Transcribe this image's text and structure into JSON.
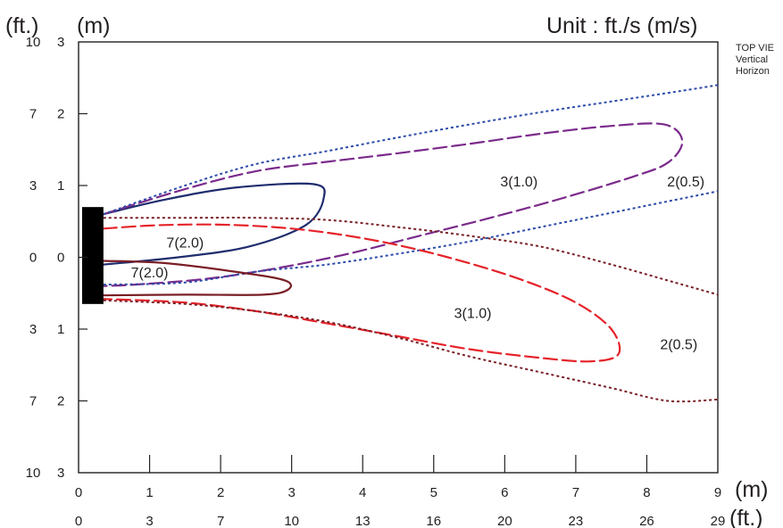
{
  "chart_data": {
    "type": "line",
    "unit_label": "Unit : ft./s (m/s)",
    "x_axis": {
      "label_m": "(m)",
      "label_ft": "(ft.)",
      "ticks_m": [
        "0",
        "1",
        "2",
        "3",
        "4",
        "5",
        "6",
        "7",
        "8",
        "9"
      ],
      "ticks_ft": [
        "0",
        "3",
        "7",
        "10",
        "13",
        "16",
        "20",
        "23",
        "26",
        "29"
      ],
      "xlim": [
        0,
        9
      ]
    },
    "y_axis": {
      "label_ft": "(ft.)",
      "label_m": "(m)",
      "ticks_m": [
        "3",
        "2",
        "1",
        "0",
        "1",
        "2",
        "3"
      ],
      "ticks_ft": [
        "10",
        "7",
        "3",
        "0",
        "3",
        "7",
        "10"
      ],
      "ylim": [
        -3,
        3
      ]
    },
    "legend_text": [
      "TOP VIE",
      "Vertical",
      "Horizon"
    ],
    "sensor": {
      "x0": 0.05,
      "x1": 0.35,
      "y0": -0.65,
      "y1": 0.7
    },
    "series": [
      {
        "plot": "upper",
        "speed": "7(2.0)",
        "color": "#1f2d6e",
        "style": "solid",
        "label": {
          "text": "7(2.0)",
          "x": 1.5,
          "y": 0.2
        },
        "points": [
          [
            0.35,
            0.6
          ],
          [
            1.2,
            0.8
          ],
          [
            2.2,
            0.97
          ],
          [
            3.3,
            1.02
          ],
          [
            3.45,
            0.82
          ],
          [
            3.2,
            0.45
          ],
          [
            2.4,
            0.15
          ],
          [
            1.4,
            0.0
          ],
          [
            0.35,
            -0.1
          ]
        ]
      },
      {
        "plot": "upper",
        "speed": "3(1.0)",
        "color": "#7b2a8b",
        "style": "dashed",
        "label": {
          "text": "3(1.0)",
          "x": 6.2,
          "y": 1.05
        },
        "points": [
          [
            0.35,
            0.6
          ],
          [
            1.5,
            0.95
          ],
          [
            2.5,
            1.2
          ],
          [
            3.5,
            1.33
          ],
          [
            4.5,
            1.45
          ],
          [
            5.5,
            1.58
          ],
          [
            6.5,
            1.72
          ],
          [
            7.5,
            1.83
          ],
          [
            8.25,
            1.85
          ],
          [
            8.5,
            1.62
          ],
          [
            8.3,
            1.32
          ],
          [
            7.8,
            1.12
          ],
          [
            6.8,
            0.82
          ],
          [
            5.8,
            0.55
          ],
          [
            4.8,
            0.3
          ],
          [
            3.8,
            0.05
          ],
          [
            2.8,
            -0.15
          ],
          [
            1.8,
            -0.3
          ],
          [
            0.8,
            -0.38
          ],
          [
            0.35,
            -0.4
          ]
        ]
      },
      {
        "plot": "upper",
        "speed": "2(0.5)",
        "color": "#2b4aa9",
        "style": "dotted",
        "label": {
          "text": "2(0.5)",
          "x": 8.55,
          "y": 1.05
        },
        "points_top": [
          [
            0.35,
            0.6
          ],
          [
            1.5,
            1.0
          ],
          [
            2.5,
            1.3
          ],
          [
            3.5,
            1.48
          ],
          [
            4.5,
            1.67
          ],
          [
            5.5,
            1.85
          ],
          [
            6.5,
            2.02
          ],
          [
            7.5,
            2.17
          ],
          [
            8.5,
            2.32
          ],
          [
            9.0,
            2.4
          ]
        ],
        "points_bottom": [
          [
            0.35,
            -0.38
          ],
          [
            1.5,
            -0.35
          ],
          [
            2.5,
            -0.2
          ],
          [
            3.5,
            -0.1
          ],
          [
            4.5,
            0.05
          ],
          [
            5.5,
            0.22
          ],
          [
            6.5,
            0.42
          ],
          [
            7.5,
            0.62
          ],
          [
            8.5,
            0.82
          ],
          [
            9.0,
            0.92
          ]
        ]
      },
      {
        "plot": "lower",
        "speed": "7(2.0)",
        "color": "#7a1e26",
        "style": "solid",
        "label": {
          "text": "7(2.0)",
          "x": 1.0,
          "y": -0.22
        },
        "points": [
          [
            0.35,
            -0.05
          ],
          [
            1.2,
            -0.08
          ],
          [
            2.2,
            -0.2
          ],
          [
            2.9,
            -0.32
          ],
          [
            2.95,
            -0.45
          ],
          [
            2.6,
            -0.52
          ],
          [
            1.5,
            -0.52
          ],
          [
            0.35,
            -0.53
          ]
        ]
      },
      {
        "plot": "lower",
        "speed": "3(1.0)",
        "color": "#e5232a",
        "style": "dashed",
        "label": {
          "text": "3(1.0)",
          "x": 5.55,
          "y": -0.78
        },
        "points": [
          [
            0.35,
            0.4
          ],
          [
            1.2,
            0.45
          ],
          [
            2.2,
            0.45
          ],
          [
            3.2,
            0.38
          ],
          [
            4.2,
            0.23
          ],
          [
            5.2,
            0.0
          ],
          [
            6.2,
            -0.3
          ],
          [
            7.0,
            -0.63
          ],
          [
            7.5,
            -1.0
          ],
          [
            7.6,
            -1.35
          ],
          [
            7.2,
            -1.45
          ],
          [
            6.5,
            -1.4
          ],
          [
            5.5,
            -1.28
          ],
          [
            4.5,
            -1.1
          ],
          [
            3.5,
            -0.92
          ],
          [
            2.5,
            -0.75
          ],
          [
            1.5,
            -0.63
          ],
          [
            0.35,
            -0.58
          ]
        ]
      },
      {
        "plot": "lower",
        "speed": "2(0.5)",
        "color": "#7a1e26",
        "style": "dotted",
        "label": {
          "text": "2(0.5)",
          "x": 8.45,
          "y": -1.22
        },
        "points_top": [
          [
            0.35,
            0.55
          ],
          [
            1.5,
            0.55
          ],
          [
            2.5,
            0.55
          ],
          [
            3.5,
            0.52
          ],
          [
            4.5,
            0.42
          ],
          [
            5.5,
            0.3
          ],
          [
            6.5,
            0.15
          ],
          [
            7.5,
            -0.1
          ],
          [
            8.5,
            -0.38
          ],
          [
            9.0,
            -0.52
          ]
        ],
        "points_bottom": [
          [
            0.35,
            -0.6
          ],
          [
            1.5,
            -0.65
          ],
          [
            2.5,
            -0.75
          ],
          [
            3.5,
            -0.9
          ],
          [
            4.5,
            -1.12
          ],
          [
            5.5,
            -1.38
          ],
          [
            6.5,
            -1.6
          ],
          [
            7.5,
            -1.82
          ],
          [
            8.3,
            -2.0
          ],
          [
            9.0,
            -1.98
          ]
        ]
      }
    ],
    "grid": false
  }
}
